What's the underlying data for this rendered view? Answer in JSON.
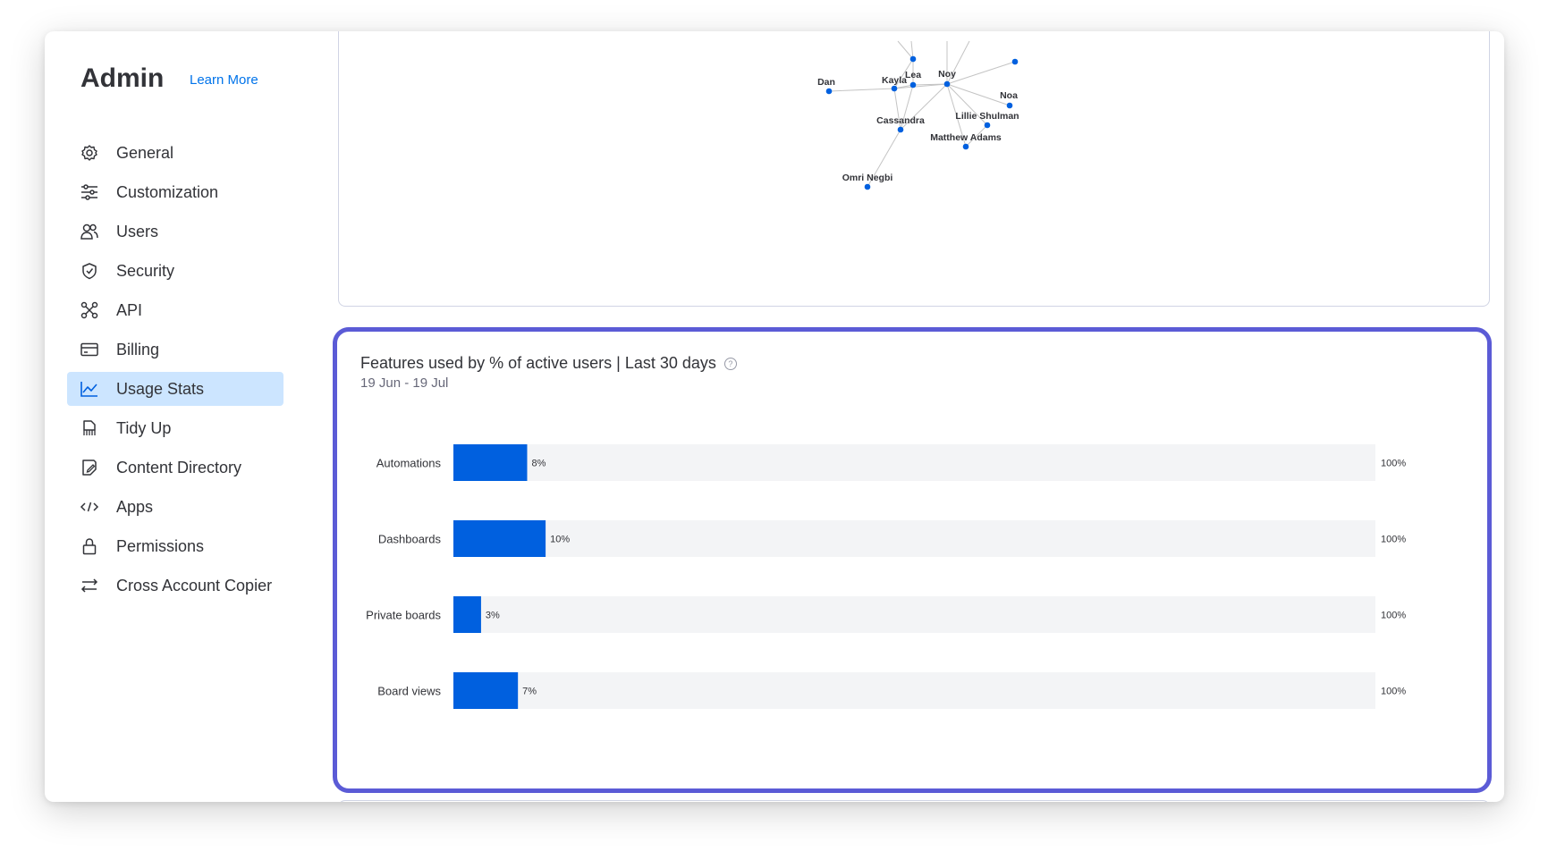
{
  "sidebar": {
    "title": "Admin",
    "learn_more": "Learn More",
    "items": [
      {
        "label": "General",
        "icon": "gear-icon"
      },
      {
        "label": "Customization",
        "icon": "sliders-icon"
      },
      {
        "label": "Users",
        "icon": "users-icon"
      },
      {
        "label": "Security",
        "icon": "shield-icon"
      },
      {
        "label": "API",
        "icon": "api-icon"
      },
      {
        "label": "Billing",
        "icon": "credit-card-icon"
      },
      {
        "label": "Usage Stats",
        "icon": "line-chart-icon",
        "active": true
      },
      {
        "label": "Tidy Up",
        "icon": "tidy-up-icon"
      },
      {
        "label": "Content Directory",
        "icon": "content-directory-icon"
      },
      {
        "label": "Apps",
        "icon": "code-icon"
      },
      {
        "label": "Permissions",
        "icon": "lock-icon"
      },
      {
        "label": "Cross Account Copier",
        "icon": "swap-arrows-icon"
      }
    ]
  },
  "network": {
    "nodes": [
      "Lea",
      "Noy",
      "Kayla",
      "Dan",
      "Noa",
      "Lillie Shulman",
      "Cassandra",
      "Matthew Adams",
      "Omri Negbi"
    ]
  },
  "feature_card": {
    "title": "Features used by % of active users | Last 30 days",
    "date_range": "19 Jun - 19 Jul",
    "help_icon": "help-circle-icon"
  },
  "chart_data": {
    "type": "bar",
    "orientation": "horizontal",
    "categories": [
      "Automations",
      "Dashboards",
      "Private boards",
      "Board views"
    ],
    "values": [
      8,
      10,
      3,
      7
    ],
    "value_labels": [
      "8%",
      "10%",
      "3%",
      "7%"
    ],
    "max_label": "100%",
    "xlim": [
      0,
      100
    ],
    "bar_color": "#0060df",
    "track_color": "#f3f4f6",
    "title": "Features used by % of active users | Last 30 days",
    "subtitle": "19 Jun - 19 Jul"
  },
  "colors": {
    "accent": "#0073ea",
    "active_nav_bg": "#cce5ff",
    "highlight_border": "#5b5bd6"
  }
}
